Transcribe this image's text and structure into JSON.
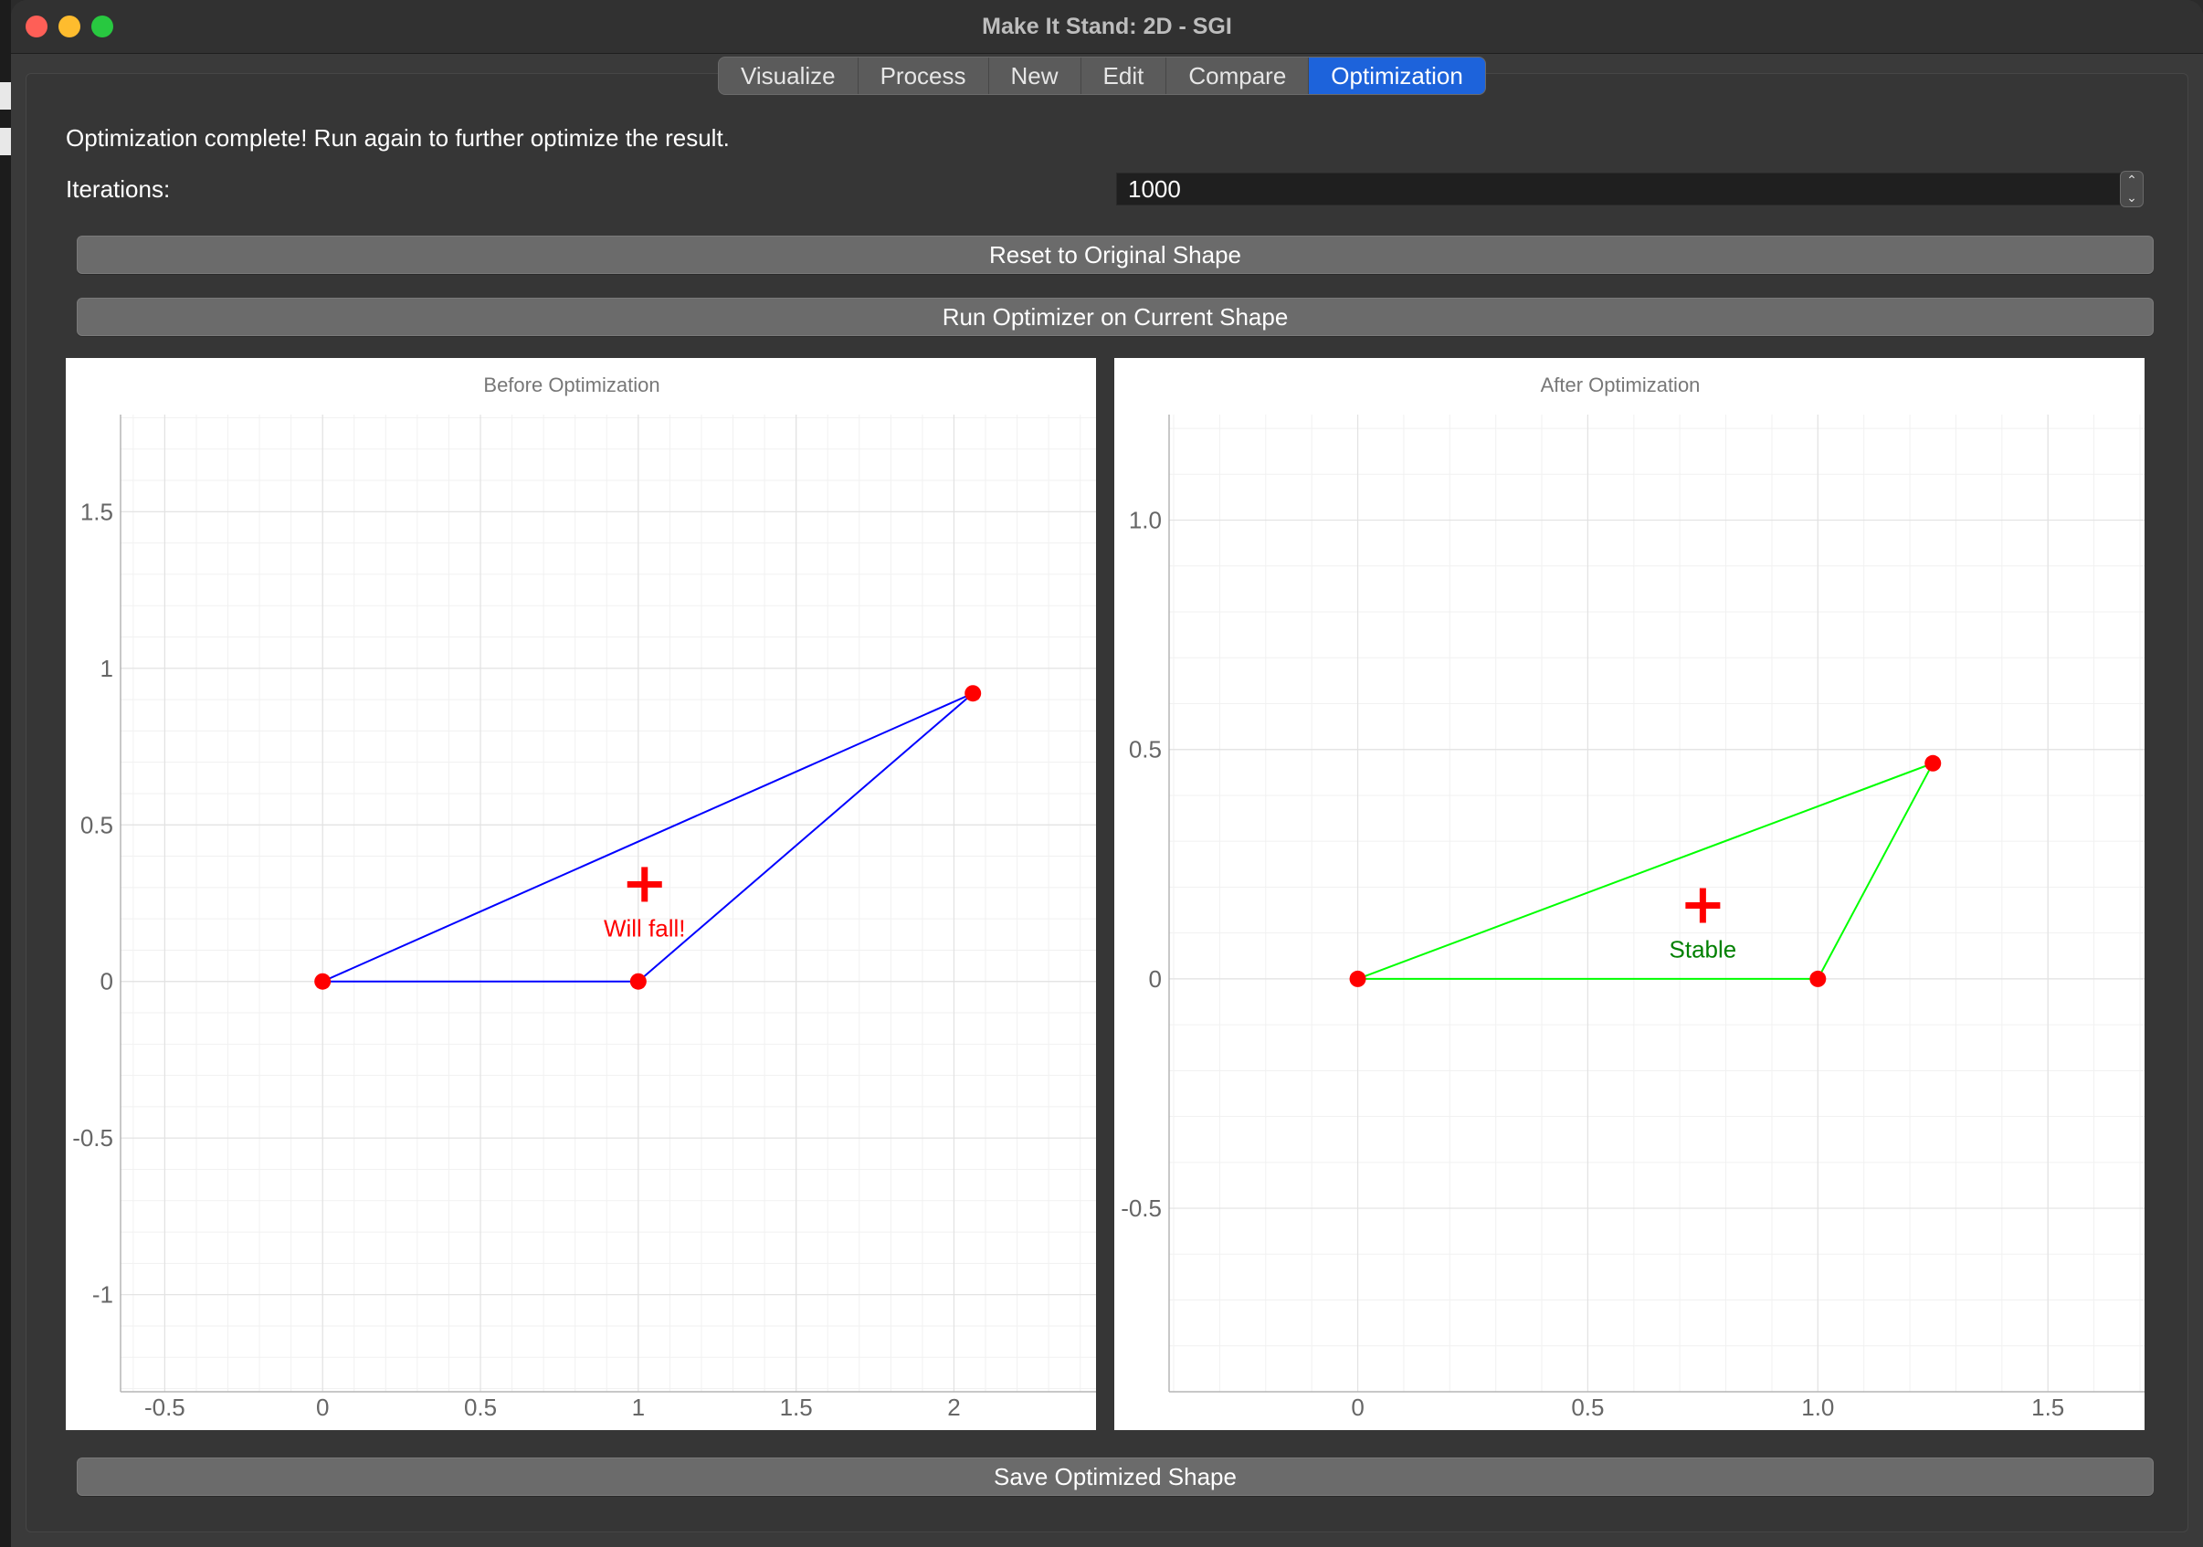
{
  "window": {
    "title": "Make It Stand: 2D - SGI"
  },
  "tabs": [
    {
      "label": "Visualize",
      "active": false
    },
    {
      "label": "Process",
      "active": false
    },
    {
      "label": "New",
      "active": false
    },
    {
      "label": "Edit",
      "active": false
    },
    {
      "label": "Compare",
      "active": false
    },
    {
      "label": "Optimization",
      "active": true
    }
  ],
  "optimization": {
    "status": "Optimization complete! Run again to further optimize the result.",
    "iterations_label": "Iterations:",
    "iterations_value": "1000",
    "reset_button": "Reset to Original Shape",
    "run_button": "Run Optimizer on Current Shape",
    "save_button": "Save Optimized Shape"
  },
  "colors": {
    "accent": "#1d63db",
    "before_edge": "#0000ff",
    "after_edge": "#00ff00",
    "vertex": "#ff0000",
    "center_of_mass": "#ff0000",
    "fall_text": "#ff0000",
    "stable_text": "#008000"
  },
  "chart_data": [
    {
      "type": "scatter",
      "title": "Before Optimization",
      "xlim": [
        -0.64,
        2.45
      ],
      "ylim": [
        -1.31,
        1.81
      ],
      "xticks": [
        -0.5,
        0,
        0.5,
        1,
        1.5,
        2
      ],
      "xtick_labels": [
        "-0.5",
        "0",
        "0.5",
        "1",
        "1.5",
        "2"
      ],
      "yticks": [
        -1,
        -0.5,
        0,
        0.5,
        1,
        1.5
      ],
      "ytick_labels": [
        "-1",
        "-0.5",
        "0",
        "0.5",
        "1",
        "1.5"
      ],
      "grid": true,
      "vertices": [
        [
          0,
          0
        ],
        [
          1,
          0
        ],
        [
          2.06,
          0.92
        ]
      ],
      "center_of_mass": [
        1.02,
        0.31
      ],
      "annotation": "Will fall!",
      "edge_color": "#0000ff",
      "annotation_color": "#ff0000"
    },
    {
      "type": "scatter",
      "title": "After Optimization",
      "xlim": [
        -0.41,
        1.71
      ],
      "ylim": [
        -0.9,
        1.23
      ],
      "xticks": [
        0,
        0.5,
        1.0,
        1.5
      ],
      "xtick_labels": [
        "0",
        "0.5",
        "1.0",
        "1.5"
      ],
      "yticks": [
        -0.5,
        0,
        0.5,
        1.0
      ],
      "ytick_labels": [
        "-0.5",
        "0",
        "0.5",
        "1.0"
      ],
      "grid": true,
      "vertices": [
        [
          0,
          0
        ],
        [
          1.0,
          0
        ],
        [
          1.25,
          0.47
        ]
      ],
      "center_of_mass": [
        0.75,
        0.16
      ],
      "annotation": "Stable",
      "edge_color": "#00ff00",
      "annotation_color": "#008000"
    }
  ]
}
